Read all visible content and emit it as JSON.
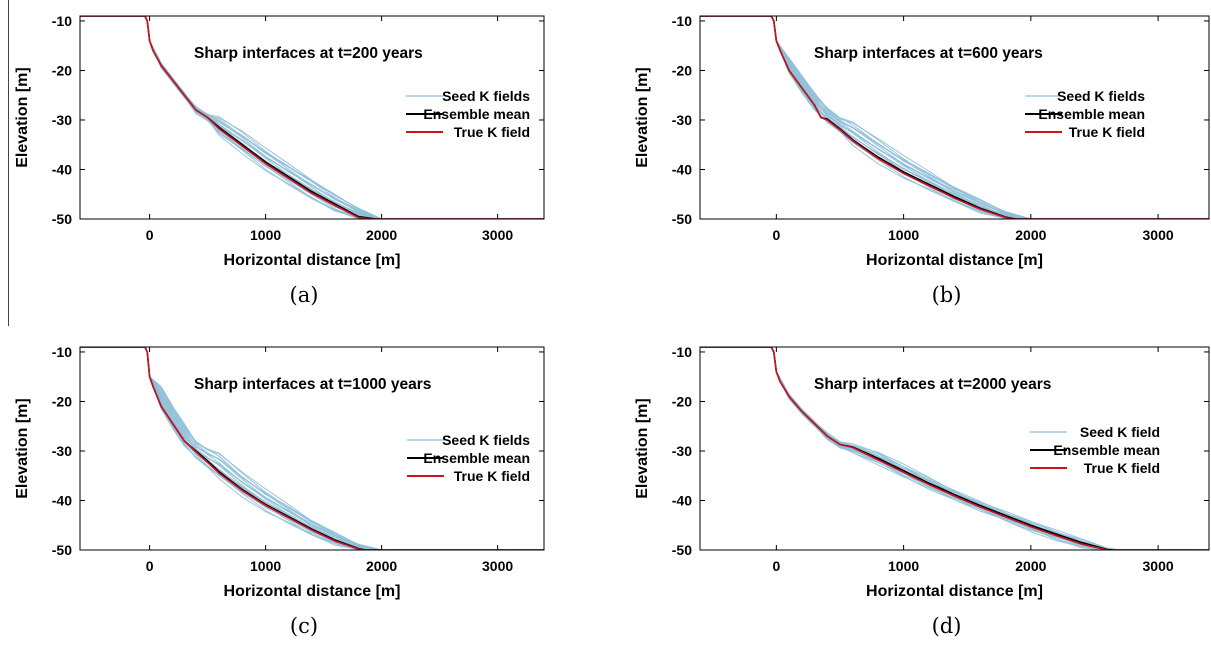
{
  "colors": {
    "seed": "#8fbfd8",
    "mean": "#000000",
    "true": "#c8141e"
  },
  "chart_data": [
    {
      "type": "line",
      "title": "Sharp interfaces at t=200 years",
      "xlabel": "Horizontal distance [m]",
      "ylabel": "Elevation [m]",
      "caption": "(a)",
      "xlim": [
        -600,
        3400
      ],
      "ylim": [
        -50,
        -9
      ],
      "xticks": [
        "0",
        "1000",
        "2000",
        "3000"
      ],
      "yticks": [
        "-10",
        "-20",
        "-30",
        "-40",
        "-50"
      ],
      "legend": [
        "Seed K fields",
        "Ensemble mean",
        "True K field"
      ],
      "legend_position": "right",
      "series": [
        {
          "name": "Ensemble mean",
          "x": [
            -600,
            -40,
            -20,
            0,
            30,
            100,
            200,
            300,
            400,
            500,
            600,
            800,
            1000,
            1200,
            1400,
            1600,
            1800,
            1950,
            3400
          ],
          "y": [
            -9,
            -9,
            -10,
            -14,
            -16,
            -19,
            -22,
            -25,
            -28,
            -29.5,
            -31.5,
            -35,
            -38.5,
            -41.5,
            -44.5,
            -47,
            -49.5,
            -50,
            -50
          ]
        },
        {
          "name": "True K field",
          "x": [
            -600,
            -40,
            -20,
            0,
            30,
            100,
            200,
            300,
            400,
            500,
            600,
            800,
            1000,
            1200,
            1400,
            1600,
            1800,
            1920,
            3400
          ],
          "y": [
            -9,
            -9,
            -10,
            -14,
            -16,
            -19,
            -22,
            -25,
            -28,
            -29.5,
            -31.8,
            -35.3,
            -38.8,
            -41.8,
            -44.8,
            -47.3,
            -49.7,
            -50,
            -50
          ]
        }
      ],
      "seed_band": {
        "x": [
          0,
          100,
          200,
          300,
          400,
          500,
          600,
          800,
          1000,
          1200,
          1400,
          1600,
          1800,
          2000
        ],
        "y_upper": [
          -14,
          -18.5,
          -21.5,
          -24.5,
          -27.5,
          -29,
          -29.5,
          -32.5,
          -36,
          -39,
          -42,
          -45,
          -47.8,
          -50
        ],
        "y_lower": [
          -14,
          -19.5,
          -22.5,
          -25.5,
          -28.5,
          -30,
          -33,
          -36.5,
          -40,
          -43,
          -46,
          -48.5,
          -50,
          -50
        ]
      }
    },
    {
      "type": "line",
      "title": "Sharp interfaces at t=600 years",
      "xlabel": "Horizontal distance [m]",
      "ylabel": "Elevation [m]",
      "caption": "(b)",
      "xlim": [
        -600,
        3400
      ],
      "ylim": [
        -50,
        -9
      ],
      "xticks": [
        "0",
        "1000",
        "2000",
        "3000"
      ],
      "yticks": [
        "-10",
        "-20",
        "-30",
        "-40",
        "-50"
      ],
      "legend": [
        "Seed K fields",
        "Ensemble mean",
        "True K field"
      ],
      "legend_position": "right",
      "series": [
        {
          "name": "Ensemble mean",
          "x": [
            -600,
            -40,
            -20,
            0,
            30,
            100,
            200,
            300,
            350,
            400,
            500,
            600,
            800,
            1000,
            1200,
            1400,
            1600,
            1800,
            1880,
            3400
          ],
          "y": [
            -9,
            -9,
            -10,
            -14,
            -16,
            -20,
            -23.5,
            -27,
            -29.5,
            -29.8,
            -31.8,
            -34,
            -37.5,
            -40.5,
            -43,
            -45.5,
            -47.8,
            -49.6,
            -50,
            -50
          ]
        },
        {
          "name": "True K field",
          "x": [
            -600,
            -40,
            -20,
            0,
            30,
            100,
            200,
            300,
            350,
            400,
            500,
            600,
            800,
            1000,
            1200,
            1400,
            1600,
            1800,
            1860,
            3400
          ],
          "y": [
            -9,
            -9,
            -10,
            -14,
            -16,
            -20,
            -23.5,
            -27,
            -29.5,
            -30,
            -32,
            -34.2,
            -37.8,
            -40.8,
            -43.3,
            -45.8,
            -48,
            -49.7,
            -50,
            -50
          ]
        }
      ],
      "seed_band": {
        "x": [
          0,
          100,
          200,
          300,
          400,
          500,
          600,
          800,
          1000,
          1200,
          1400,
          1600,
          1800,
          2000
        ],
        "y_upper": [
          -14,
          -17.5,
          -21,
          -24.5,
          -27.5,
          -29.5,
          -30.5,
          -34,
          -37.5,
          -40.5,
          -43.5,
          -46,
          -48.5,
          -50
        ],
        "y_lower": [
          -14,
          -20.5,
          -24.5,
          -28,
          -30.5,
          -32.5,
          -35,
          -38.5,
          -41.5,
          -44,
          -46.5,
          -48.8,
          -50,
          -50
        ]
      }
    },
    {
      "type": "line",
      "title": "Sharp interfaces at t=1000 years",
      "xlabel": "Horizontal distance [m]",
      "ylabel": "Elevation [m]",
      "caption": "(c)",
      "xlim": [
        -600,
        3400
      ],
      "ylim": [
        -50,
        -9
      ],
      "xticks": [
        "0",
        "1000",
        "2000",
        "3000"
      ],
      "yticks": [
        "-10",
        "-20",
        "-30",
        "-40",
        "-50"
      ],
      "legend": [
        "Seed K fields",
        "Ensemble mean",
        "True K field"
      ],
      "legend_position": "right",
      "series": [
        {
          "name": "Ensemble mean",
          "x": [
            -600,
            -40,
            -20,
            0,
            30,
            100,
            200,
            300,
            400,
            500,
            600,
            800,
            1000,
            1200,
            1400,
            1600,
            1800,
            1860,
            3400
          ],
          "y": [
            -9,
            -9,
            -10,
            -15,
            -17,
            -21,
            -24.5,
            -28,
            -30,
            -32,
            -34.2,
            -37.8,
            -40.8,
            -43.3,
            -45.8,
            -48,
            -49.7,
            -50,
            -50
          ]
        },
        {
          "name": "True K field",
          "x": [
            -600,
            -40,
            -20,
            0,
            30,
            100,
            200,
            300,
            400,
            500,
            600,
            800,
            1000,
            1200,
            1400,
            1600,
            1800,
            1850,
            3400
          ],
          "y": [
            -9,
            -9,
            -10,
            -15,
            -17,
            -21,
            -24.5,
            -28,
            -30.2,
            -32.3,
            -34.5,
            -38,
            -41,
            -43.5,
            -46,
            -48.2,
            -49.8,
            -50,
            -50
          ]
        }
      ],
      "seed_band": {
        "x": [
          0,
          100,
          200,
          300,
          400,
          500,
          600,
          800,
          1000,
          1200,
          1400,
          1600,
          1800,
          2000
        ],
        "y_upper": [
          -15,
          -17,
          -21,
          -24.5,
          -28,
          -29.5,
          -30.5,
          -34.5,
          -38,
          -41,
          -44,
          -46.5,
          -48.8,
          -50
        ],
        "y_lower": [
          -15,
          -21.5,
          -25.5,
          -29,
          -31.5,
          -33.5,
          -35.5,
          -39,
          -42,
          -44.5,
          -47,
          -49,
          -50,
          -50
        ]
      }
    },
    {
      "type": "line",
      "title": "Sharp interfaces at t=2000 years",
      "xlabel": "Horizontal distance [m]",
      "ylabel": "Elevation [m]",
      "caption": "(d)",
      "xlim": [
        -600,
        3400
      ],
      "ylim": [
        -50,
        -9
      ],
      "xticks": [
        "0",
        "1000",
        "2000",
        "3000"
      ],
      "yticks": [
        "-10",
        "-20",
        "-30",
        "-40",
        "-50"
      ],
      "legend": [
        "Seed K field",
        "Ensemble mean",
        "True K field"
      ],
      "legend_position": "right",
      "series": [
        {
          "name": "Ensemble mean",
          "x": [
            -600,
            -40,
            -20,
            0,
            30,
            100,
            200,
            300,
            400,
            500,
            600,
            800,
            1000,
            1200,
            1400,
            1600,
            1800,
            2000,
            2200,
            2400,
            2600,
            2650,
            3400
          ],
          "y": [
            -9,
            -9,
            -10,
            -14,
            -16,
            -19,
            -22,
            -24.5,
            -27,
            -28.7,
            -29.2,
            -31.5,
            -34,
            -36.5,
            -38.8,
            -41,
            -43,
            -45,
            -46.8,
            -48.5,
            -49.9,
            -50,
            -50
          ]
        },
        {
          "name": "True K field",
          "x": [
            -600,
            -40,
            -20,
            0,
            30,
            100,
            200,
            300,
            400,
            500,
            600,
            800,
            1000,
            1200,
            1400,
            1600,
            1800,
            2000,
            2200,
            2400,
            2600,
            2640,
            3400
          ],
          "y": [
            -9,
            -9,
            -10,
            -14,
            -16,
            -19,
            -22,
            -24.5,
            -27,
            -28.7,
            -29.3,
            -31.8,
            -34.3,
            -36.8,
            -39.1,
            -41.3,
            -43.3,
            -45.3,
            -47.1,
            -48.8,
            -50,
            -50,
            -50
          ]
        }
      ],
      "seed_band": {
        "x": [
          0,
          100,
          200,
          300,
          400,
          500,
          600,
          800,
          1000,
          1200,
          1400,
          1600,
          1800,
          2000,
          2200,
          2400,
          2600,
          2700
        ],
        "y_upper": [
          -14,
          -18.5,
          -21.5,
          -24,
          -26.5,
          -28.3,
          -28.8,
          -30.5,
          -33,
          -35.5,
          -38,
          -40.3,
          -42.4,
          -44.4,
          -46.3,
          -48,
          -49.6,
          -50
        ],
        "y_lower": [
          -14,
          -19.5,
          -22.5,
          -25,
          -27.5,
          -29.2,
          -30.2,
          -32.5,
          -35,
          -37.5,
          -39.8,
          -42,
          -44,
          -46,
          -47.8,
          -49.3,
          -50,
          -50
        ]
      }
    }
  ]
}
